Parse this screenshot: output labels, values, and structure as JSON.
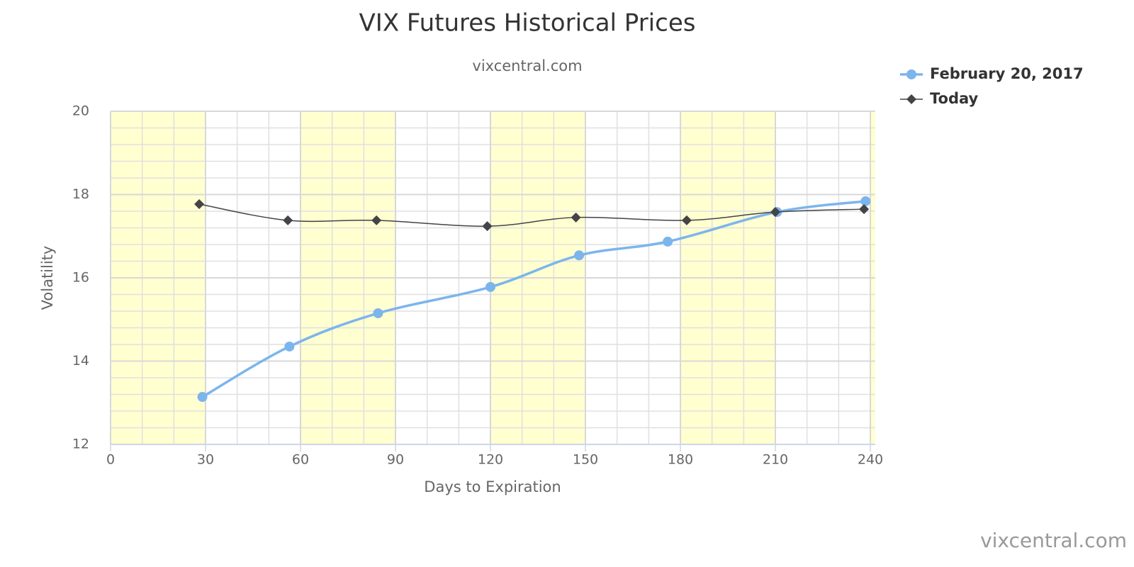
{
  "chart_data": {
    "type": "spline",
    "title": "VIX Futures Historical Prices",
    "subtitle": "vixcentral.com",
    "credits": "vixcentral.com",
    "x_label": "Days to Expiration",
    "y_label": "Volatility",
    "xlim": [
      0,
      241.5
    ],
    "xticks": [
      0,
      30,
      60,
      90,
      120,
      150,
      180,
      210,
      240
    ],
    "ylim": [
      12,
      20
    ],
    "yticks": [
      12,
      14,
      16,
      18,
      20
    ],
    "grid": true,
    "x_minor_per_tick": 3,
    "y_minor_per_tick": 5,
    "alternate_band_color": "#ffffd0",
    "legend": "top-right",
    "series": [
      {
        "name": "February 20, 2017",
        "color": "#7cb5ec",
        "marker": "circle",
        "line_width": 3.5,
        "x": [
          29,
          56.5,
          84.5,
          120,
          148,
          176,
          210.5,
          238.5
        ],
        "values": [
          13.14,
          14.35,
          15.15,
          15.78,
          16.54,
          16.87,
          17.58,
          17.84
        ]
      },
      {
        "name": "Today",
        "color": "#434348",
        "marker": "diamond",
        "line_width": 1.5,
        "x": [
          28,
          56,
          84,
          119,
          147,
          182,
          210,
          238
        ],
        "values": [
          17.77,
          17.38,
          17.38,
          17.24,
          17.45,
          17.38,
          17.58,
          17.65
        ]
      }
    ]
  }
}
